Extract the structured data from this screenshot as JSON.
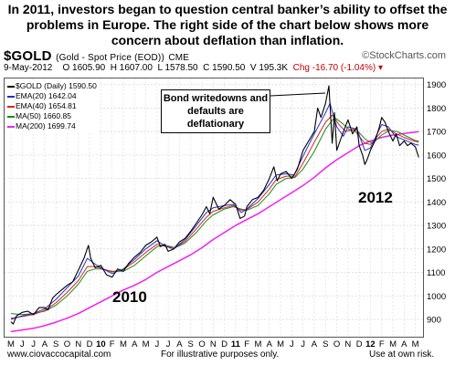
{
  "header": {
    "headline": "In 2011, investors began to question central banker’s ability to offset the problems in Europe.  The right side of the chart below shows more concern about deflation than inflation."
  },
  "chart_header": {
    "symbol": "$GOLD",
    "description": "(Gold - Spot Price (EOD))",
    "exchange": "CME",
    "brand": "©StockCharts.com",
    "quote": {
      "date": "9-May-2012",
      "open": "O 1605.90",
      "high": "H 1607.00",
      "low": "L 1578.50",
      "close": "C 1590.50",
      "volume": "V 195.3K",
      "change": "Chg -16.70 (-1.04%)",
      "change_marker": "▾"
    }
  },
  "legend": [
    {
      "label": "$GOLD (Daily) 1590.50",
      "color": "#000000"
    },
    {
      "label": "EMA(20) 1642.04",
      "color": "#1f2fd0"
    },
    {
      "label": "EMA(40) 1654.81",
      "color": "#e02020"
    },
    {
      "label": "MA(50) 1660.85",
      "color": "#1a8a1a"
    },
    {
      "label": "MA(200) 1699.74",
      "color": "#ee22ee"
    }
  ],
  "callout": {
    "text": "Bond writedowns and defaults are deflationary"
  },
  "annotations": {
    "year_2010": "2010",
    "year_2012": "2012"
  },
  "footer": {
    "site": "www.ciovaccocapital.com",
    "note": "For illustrative purposes only.",
    "risk": "Use at own risk."
  },
  "chart_data": {
    "type": "line",
    "title": "$GOLD (Gold - Spot Price (EOD)) CME",
    "ylabel": "",
    "xlabel": "",
    "ylim": [
      830,
      1930
    ],
    "y_ticks": [
      900,
      1000,
      1100,
      1200,
      1300,
      1400,
      1500,
      1600,
      1700,
      1800,
      1900
    ],
    "x_ticks": [
      {
        "label": "M",
        "t": 0
      },
      {
        "label": "J",
        "t": 1
      },
      {
        "label": "J",
        "t": 2
      },
      {
        "label": "A",
        "t": 3
      },
      {
        "label": "S",
        "t": 4
      },
      {
        "label": "O",
        "t": 5
      },
      {
        "label": "N",
        "t": 6
      },
      {
        "label": "D",
        "t": 7
      },
      {
        "label": "10",
        "t": 8,
        "bold": true
      },
      {
        "label": "F",
        "t": 9
      },
      {
        "label": "M",
        "t": 10
      },
      {
        "label": "A",
        "t": 11
      },
      {
        "label": "M",
        "t": 12
      },
      {
        "label": "J",
        "t": 13
      },
      {
        "label": "J",
        "t": 14
      },
      {
        "label": "A",
        "t": 15
      },
      {
        "label": "S",
        "t": 16
      },
      {
        "label": "O",
        "t": 17
      },
      {
        "label": "N",
        "t": 18
      },
      {
        "label": "D",
        "t": 19
      },
      {
        "label": "11",
        "t": 20,
        "bold": true
      },
      {
        "label": "F",
        "t": 21
      },
      {
        "label": "M",
        "t": 22
      },
      {
        "label": "A",
        "t": 23
      },
      {
        "label": "M",
        "t": 24
      },
      {
        "label": "J",
        "t": 25
      },
      {
        "label": "J",
        "t": 26
      },
      {
        "label": "A",
        "t": 27
      },
      {
        "label": "S",
        "t": 28
      },
      {
        "label": "O",
        "t": 29
      },
      {
        "label": "N",
        "t": 30
      },
      {
        "label": "D",
        "t": 31
      },
      {
        "label": "12",
        "t": 32,
        "bold": true
      },
      {
        "label": "F",
        "t": 33
      },
      {
        "label": "M",
        "t": 34
      },
      {
        "label": "A",
        "t": 35
      },
      {
        "label": "M",
        "t": 36
      }
    ],
    "grid": true,
    "series": [
      {
        "name": "$GOLD (Daily)",
        "color": "#000000",
        "width": 1.1,
        "points": [
          [
            0,
            890
          ],
          [
            0.2,
            880
          ],
          [
            0.5,
            915
          ],
          [
            1,
            930
          ],
          [
            1.5,
            935
          ],
          [
            2,
            920
          ],
          [
            2.5,
            950
          ],
          [
            3,
            950
          ],
          [
            3.3,
            940
          ],
          [
            3.7,
            990
          ],
          [
            4,
            1005
          ],
          [
            4.5,
            1025
          ],
          [
            5,
            1045
          ],
          [
            5.5,
            1060
          ],
          [
            6,
            1110
          ],
          [
            6.5,
            1160
          ],
          [
            6.9,
            1215
          ],
          [
            7.1,
            1160
          ],
          [
            7.5,
            1120
          ],
          [
            8,
            1130
          ],
          [
            8.5,
            1090
          ],
          [
            9,
            1080
          ],
          [
            9.5,
            1115
          ],
          [
            10,
            1105
          ],
          [
            10.5,
            1140
          ],
          [
            11,
            1165
          ],
          [
            11.5,
            1185
          ],
          [
            12,
            1215
          ],
          [
            12.5,
            1230
          ],
          [
            13,
            1250
          ],
          [
            13.3,
            1210
          ],
          [
            13.7,
            1220
          ],
          [
            14,
            1190
          ],
          [
            14.5,
            1200
          ],
          [
            15,
            1230
          ],
          [
            15.5,
            1245
          ],
          [
            16,
            1275
          ],
          [
            16.5,
            1310
          ],
          [
            17,
            1345
          ],
          [
            17.4,
            1380
          ],
          [
            17.7,
            1350
          ],
          [
            18,
            1420
          ],
          [
            18.5,
            1370
          ],
          [
            19,
            1385
          ],
          [
            19.5,
            1410
          ],
          [
            20,
            1390
          ],
          [
            20.4,
            1330
          ],
          [
            20.8,
            1340
          ],
          [
            21,
            1380
          ],
          [
            21.5,
            1410
          ],
          [
            22,
            1420
          ],
          [
            22.5,
            1450
          ],
          [
            23,
            1500
          ],
          [
            23.4,
            1550
          ],
          [
            23.7,
            1490
          ],
          [
            24,
            1520
          ],
          [
            24.5,
            1530
          ],
          [
            25,
            1500
          ],
          [
            25.5,
            1540
          ],
          [
            26,
            1620
          ],
          [
            26.5,
            1660
          ],
          [
            27,
            1700
          ],
          [
            27.3,
            1800
          ],
          [
            27.6,
            1760
          ],
          [
            28,
            1820
          ],
          [
            28.3,
            1895
          ],
          [
            28.6,
            1650
          ],
          [
            28.8,
            1780
          ],
          [
            29,
            1620
          ],
          [
            29.3,
            1660
          ],
          [
            29.6,
            1700
          ],
          [
            30,
            1750
          ],
          [
            30.4,
            1690
          ],
          [
            30.8,
            1720
          ],
          [
            31,
            1640
          ],
          [
            31.3,
            1600
          ],
          [
            31.5,
            1560
          ],
          [
            31.7,
            1580
          ],
          [
            32,
            1620
          ],
          [
            32.4,
            1660
          ],
          [
            32.8,
            1720
          ],
          [
            33,
            1760
          ],
          [
            33.3,
            1740
          ],
          [
            33.6,
            1700
          ],
          [
            34,
            1660
          ],
          [
            34.3,
            1690
          ],
          [
            34.6,
            1640
          ],
          [
            35,
            1660
          ],
          [
            35.3,
            1640
          ],
          [
            35.6,
            1650
          ],
          [
            36,
            1635
          ],
          [
            36.3,
            1590
          ]
        ]
      },
      {
        "name": "EMA(20)",
        "color": "#1f2fd0",
        "width": 1,
        "points": [
          [
            0,
            900
          ],
          [
            1,
            915
          ],
          [
            2,
            925
          ],
          [
            3,
            945
          ],
          [
            4,
            985
          ],
          [
            5,
            1035
          ],
          [
            6,
            1085
          ],
          [
            6.8,
            1160
          ],
          [
            7.5,
            1135
          ],
          [
            8,
            1120
          ],
          [
            9,
            1095
          ],
          [
            10,
            1115
          ],
          [
            11,
            1155
          ],
          [
            12,
            1200
          ],
          [
            13,
            1235
          ],
          [
            13.8,
            1210
          ],
          [
            14.5,
            1200
          ],
          [
            15.5,
            1240
          ],
          [
            16.5,
            1300
          ],
          [
            17.4,
            1355
          ],
          [
            18,
            1375
          ],
          [
            19,
            1385
          ],
          [
            19.8,
            1390
          ],
          [
            20.5,
            1355
          ],
          [
            21,
            1370
          ],
          [
            22,
            1415
          ],
          [
            23,
            1475
          ],
          [
            23.6,
            1515
          ],
          [
            24.5,
            1520
          ],
          [
            25.2,
            1515
          ],
          [
            26,
            1595
          ],
          [
            27,
            1690
          ],
          [
            28,
            1780
          ],
          [
            28.4,
            1820
          ],
          [
            29,
            1720
          ],
          [
            29.6,
            1680
          ],
          [
            30,
            1720
          ],
          [
            30.8,
            1710
          ],
          [
            31.5,
            1620
          ],
          [
            32,
            1630
          ],
          [
            33,
            1730
          ],
          [
            33.6,
            1720
          ],
          [
            34.2,
            1680
          ],
          [
            35,
            1665
          ],
          [
            36,
            1645
          ],
          [
            36.3,
            1642
          ]
        ]
      },
      {
        "name": "EMA(40)",
        "color": "#e02020",
        "width": 1,
        "points": [
          [
            0,
            905
          ],
          [
            1,
            912
          ],
          [
            2,
            920
          ],
          [
            3,
            938
          ],
          [
            4,
            970
          ],
          [
            5,
            1015
          ],
          [
            6,
            1065
          ],
          [
            6.8,
            1125
          ],
          [
            7.5,
            1125
          ],
          [
            8,
            1118
          ],
          [
            9,
            1102
          ],
          [
            10,
            1112
          ],
          [
            11,
            1145
          ],
          [
            12,
            1185
          ],
          [
            13,
            1220
          ],
          [
            13.8,
            1210
          ],
          [
            14.6,
            1205
          ],
          [
            15.5,
            1232
          ],
          [
            16.5,
            1285
          ],
          [
            17.4,
            1335
          ],
          [
            18,
            1360
          ],
          [
            19,
            1375
          ],
          [
            19.8,
            1385
          ],
          [
            20.5,
            1365
          ],
          [
            21,
            1368
          ],
          [
            22,
            1400
          ],
          [
            23,
            1455
          ],
          [
            23.6,
            1495
          ],
          [
            24.5,
            1510
          ],
          [
            25.3,
            1510
          ],
          [
            26,
            1565
          ],
          [
            27,
            1655
          ],
          [
            28,
            1740
          ],
          [
            28.6,
            1770
          ],
          [
            29.2,
            1730
          ],
          [
            29.8,
            1700
          ],
          [
            30.5,
            1710
          ],
          [
            31.5,
            1650
          ],
          [
            32,
            1645
          ],
          [
            33,
            1700
          ],
          [
            33.6,
            1710
          ],
          [
            34.3,
            1690
          ],
          [
            35,
            1675
          ],
          [
            36,
            1658
          ],
          [
            36.3,
            1655
          ]
        ]
      },
      {
        "name": "MA(50)",
        "color": "#1a8a1a",
        "width": 1,
        "points": [
          [
            0,
            925
          ],
          [
            1,
            920
          ],
          [
            2,
            925
          ],
          [
            3,
            935
          ],
          [
            4,
            960
          ],
          [
            5,
            1000
          ],
          [
            6,
            1050
          ],
          [
            6.8,
            1105
          ],
          [
            7.5,
            1115
          ],
          [
            8,
            1115
          ],
          [
            9,
            1105
          ],
          [
            10,
            1105
          ],
          [
            11,
            1130
          ],
          [
            12,
            1170
          ],
          [
            13,
            1210
          ],
          [
            13.8,
            1215
          ],
          [
            14.6,
            1205
          ],
          [
            15.5,
            1225
          ],
          [
            16.5,
            1270
          ],
          [
            17.4,
            1320
          ],
          [
            18,
            1345
          ],
          [
            19,
            1370
          ],
          [
            19.8,
            1380
          ],
          [
            20.5,
            1370
          ],
          [
            21,
            1365
          ],
          [
            22,
            1385
          ],
          [
            23,
            1435
          ],
          [
            23.6,
            1475
          ],
          [
            24.5,
            1500
          ],
          [
            25.3,
            1505
          ],
          [
            26,
            1540
          ],
          [
            27,
            1615
          ],
          [
            28,
            1710
          ],
          [
            28.8,
            1760
          ],
          [
            29.5,
            1735
          ],
          [
            30.2,
            1705
          ],
          [
            30.8,
            1705
          ],
          [
            31.6,
            1665
          ],
          [
            32.2,
            1650
          ],
          [
            33,
            1685
          ],
          [
            33.7,
            1705
          ],
          [
            34.4,
            1700
          ],
          [
            35,
            1685
          ],
          [
            36,
            1662
          ],
          [
            36.3,
            1660
          ]
        ]
      },
      {
        "name": "MA(200)",
        "color": "#ee22ee",
        "width": 1.5,
        "points": [
          [
            0,
            848
          ],
          [
            1,
            855
          ],
          [
            2,
            862
          ],
          [
            3,
            873
          ],
          [
            4,
            888
          ],
          [
            5,
            905
          ],
          [
            6,
            925
          ],
          [
            7,
            950
          ],
          [
            8,
            975
          ],
          [
            9,
            1000
          ],
          [
            10,
            1025
          ],
          [
            11,
            1045
          ],
          [
            12,
            1070
          ],
          [
            13,
            1100
          ],
          [
            14,
            1125
          ],
          [
            15,
            1150
          ],
          [
            16,
            1175
          ],
          [
            17,
            1205
          ],
          [
            18,
            1240
          ],
          [
            19,
            1270
          ],
          [
            20,
            1300
          ],
          [
            21,
            1325
          ],
          [
            22,
            1350
          ],
          [
            23,
            1380
          ],
          [
            24,
            1410
          ],
          [
            25,
            1440
          ],
          [
            26,
            1470
          ],
          [
            27,
            1505
          ],
          [
            28,
            1545
          ],
          [
            29,
            1580
          ],
          [
            30,
            1610
          ],
          [
            31,
            1640
          ],
          [
            32,
            1660
          ],
          [
            33,
            1675
          ],
          [
            34,
            1685
          ],
          [
            35,
            1692
          ],
          [
            36,
            1698
          ],
          [
            36.3,
            1700
          ]
        ]
      }
    ]
  }
}
